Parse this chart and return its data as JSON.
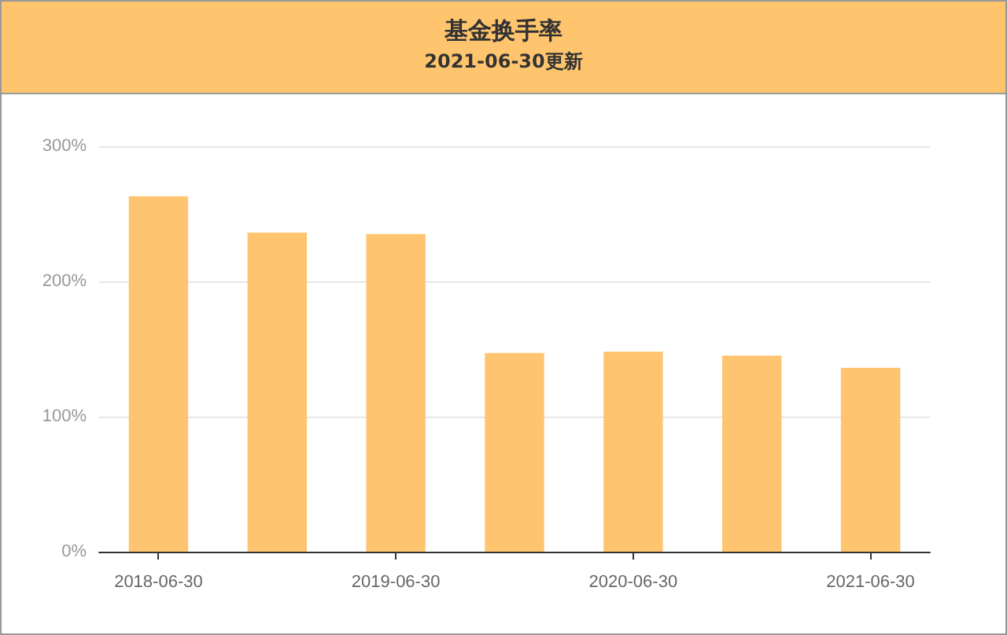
{
  "chart_data": {
    "type": "bar",
    "title": "基金换手率",
    "subtitle": "2021-06-30更新",
    "categories": [
      "2018-06-30",
      null,
      "2019-06-30",
      null,
      "2020-06-30",
      null,
      "2021-06-30"
    ],
    "values": [
      263,
      236,
      235,
      147,
      148,
      145,
      136
    ],
    "color": "#ffc46f",
    "ylim": [
      0,
      300
    ],
    "yticks": [
      {
        "value": 0,
        "label": "0%"
      },
      {
        "value": 100,
        "label": "100%"
      },
      {
        "value": 200,
        "label": "200%"
      },
      {
        "value": 300,
        "label": "300%"
      }
    ],
    "grid": "y"
  }
}
